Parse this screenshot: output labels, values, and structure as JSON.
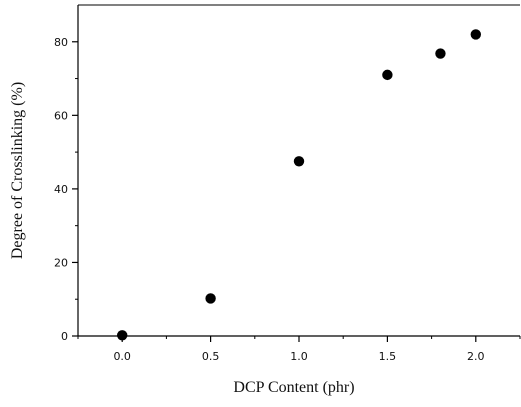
{
  "chart_data": {
    "type": "scatter",
    "title": "",
    "xlabel": "DCP Content (phr)",
    "ylabel": "Degree of Crosslinking (%)",
    "xlim": [
      -0.25,
      2.25
    ],
    "ylim": [
      0,
      90
    ],
    "x_ticks": [
      0.0,
      0.5,
      1.0,
      1.5,
      2.0
    ],
    "x_tick_labels": [
      "0.0",
      "0.5",
      "1.0",
      "1.5",
      "2.0"
    ],
    "y_ticks": [
      0,
      20,
      40,
      60,
      80
    ],
    "y_tick_labels": [
      "0",
      "20",
      "40",
      "60",
      "80"
    ],
    "grid": false,
    "legend": "none",
    "series": [
      {
        "x": [
          0.0,
          0.5,
          1.0,
          1.5,
          1.8,
          2.0
        ],
        "y": [
          0.2,
          10.2,
          47.5,
          71.0,
          76.8,
          82.0
        ]
      }
    ],
    "colors": {
      "marker": "#000000",
      "axis": "#000000"
    }
  }
}
